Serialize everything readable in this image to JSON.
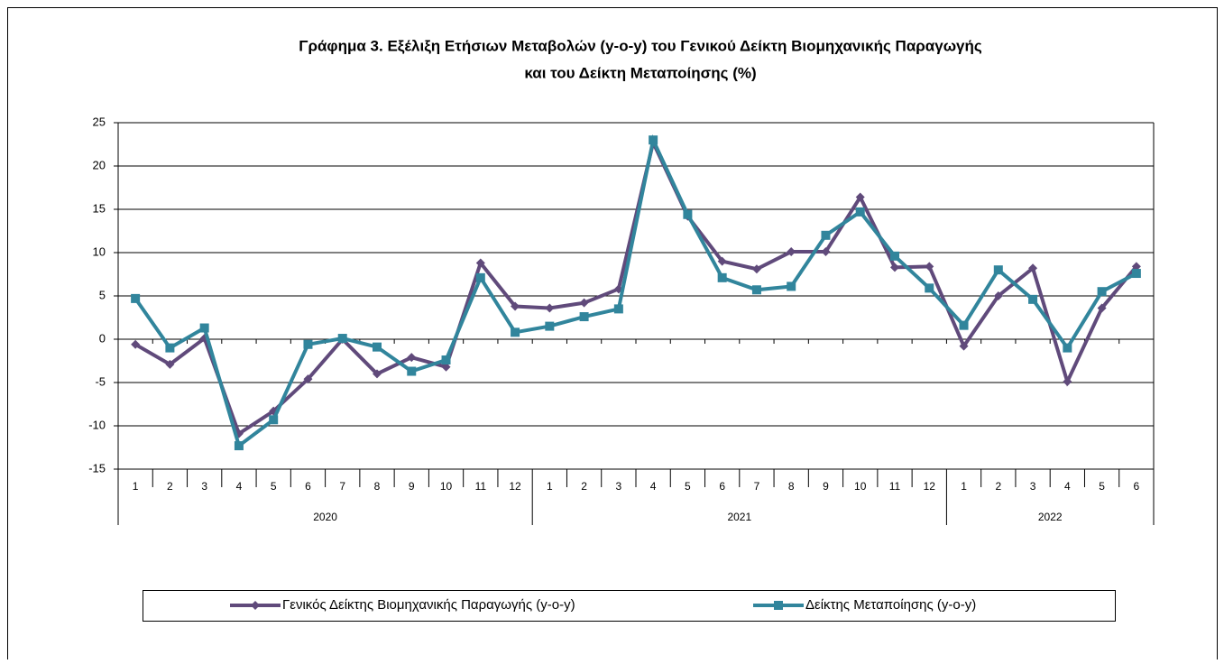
{
  "chart_data": {
    "type": "line",
    "title": [
      "Γράφημα 3. Εξέλιξη Ετήσιων Μεταβολών (y-o-y) του Γενικού Δείκτη Βιομηχανικής Παραγωγής",
      "και του Δείκτη Μεταποίησης (%)"
    ],
    "category_groups": [
      {
        "label": "2020",
        "categories": [
          "1",
          "2",
          "3",
          "4",
          "5",
          "6",
          "7",
          "8",
          "9",
          "10",
          "11",
          "12"
        ]
      },
      {
        "label": "2021",
        "categories": [
          "1",
          "2",
          "3",
          "4",
          "5",
          "6",
          "7",
          "8",
          "9",
          "10",
          "11",
          "12"
        ]
      },
      {
        "label": "2022",
        "categories": [
          "1",
          "2",
          "3",
          "4",
          "5",
          "6"
        ]
      }
    ],
    "series": [
      {
        "name": "Γενικός Δείκτης Βιομηχανικής Παραγωγής (y-o-y)",
        "color": "#604a7b",
        "marker": "diamond",
        "values": [
          -0.6,
          -2.9,
          0.1,
          -10.9,
          -8.3,
          -4.6,
          0.0,
          -4.0,
          -2.1,
          -3.2,
          8.8,
          3.8,
          3.6,
          4.2,
          5.8,
          22.7,
          14.2,
          9.0,
          8.1,
          10.1,
          10.1,
          16.4,
          8.3,
          8.4,
          -0.8,
          5.0,
          8.2,
          -4.9,
          3.6,
          8.4
        ]
      },
      {
        "name": "Δείκτης Μεταποίησης (y-o-y)",
        "color": "#31859c",
        "marker": "square",
        "values": [
          4.7,
          -1.0,
          1.3,
          -12.3,
          -9.3,
          -0.6,
          0.1,
          -0.9,
          -3.7,
          -2.4,
          7.1,
          0.8,
          1.5,
          2.6,
          3.5,
          23.0,
          14.4,
          7.1,
          5.7,
          6.1,
          12.0,
          14.7,
          9.6,
          5.9,
          1.6,
          8.0,
          4.6,
          -1.0,
          5.5,
          7.6
        ]
      }
    ],
    "ylim": [
      -15,
      25
    ],
    "yticks": [
      -15,
      -10,
      -5,
      0,
      5,
      10,
      15,
      20,
      25
    ],
    "grid": true
  }
}
